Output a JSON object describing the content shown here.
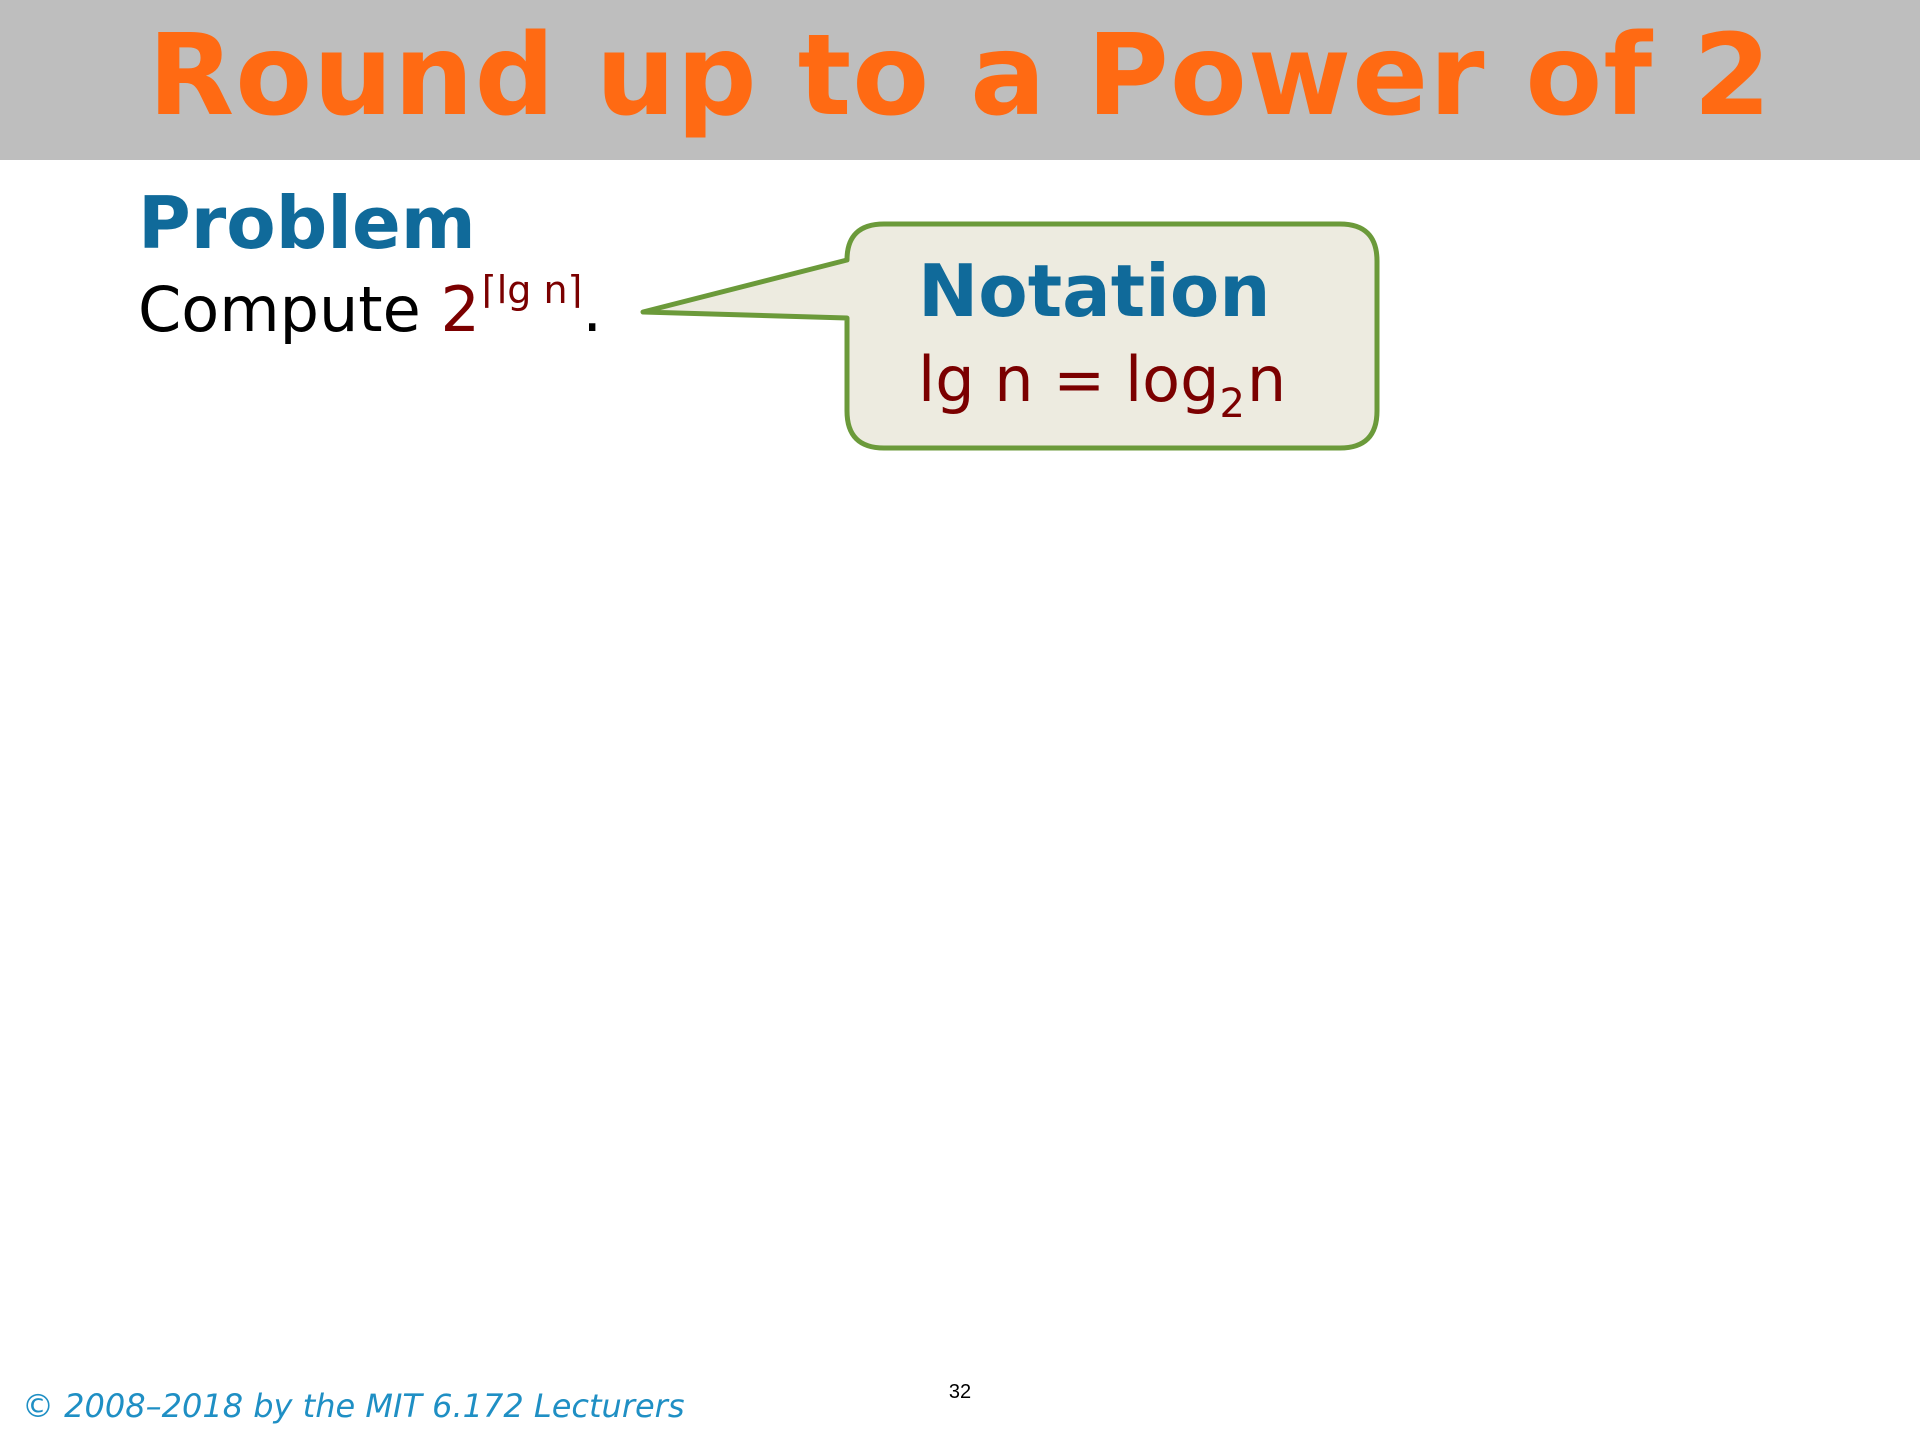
{
  "slide": {
    "title": "Round up to a Power of 2",
    "page_number": "32",
    "copyright": "© 2008–2018 by the MIT 6.172 Lecturers"
  },
  "problem": {
    "heading": "Problem",
    "text": "Compute ",
    "base": "2",
    "exponent": "⌈lg n⌉",
    "period": "."
  },
  "callout": {
    "heading": "Notation",
    "lhs": "lg n = log",
    "subscript": "2",
    "rhs": "n"
  },
  "colors": {
    "title_orange": "#ff6a13",
    "title_bar_gray": "#bebebe",
    "heading_blue": "#106a9a",
    "math_red": "#7b0000",
    "callout_fill": "#edebe0",
    "callout_border": "#6b9a3a",
    "footer_blue": "#1f8fc4"
  }
}
